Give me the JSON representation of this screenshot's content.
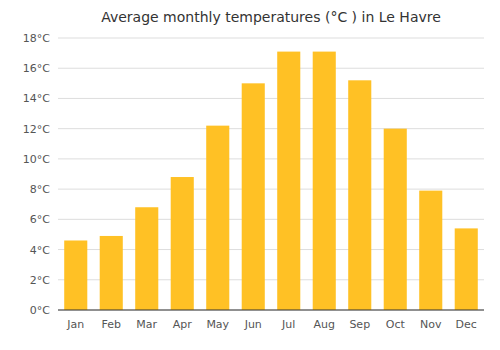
{
  "chart_data": {
    "type": "bar",
    "title": "Average monthly temperatures (°C ) in Le Havre",
    "categories": [
      "Jan",
      "Feb",
      "Mar",
      "Apr",
      "May",
      "Jun",
      "Jul",
      "Aug",
      "Sep",
      "Oct",
      "Nov",
      "Dec"
    ],
    "values": [
      4.6,
      4.9,
      6.8,
      8.8,
      12.2,
      15.0,
      17.1,
      17.1,
      15.2,
      12.0,
      7.9,
      5.4
    ],
    "color": "#FFC125",
    "ylim": [
      0,
      18
    ],
    "yticks": [
      {
        "value": 0,
        "label": "0°C"
      },
      {
        "value": 2,
        "label": "2°C"
      },
      {
        "value": 4,
        "label": "4°C"
      },
      {
        "value": 6,
        "label": "6°C"
      },
      {
        "value": 8,
        "label": "8°C"
      },
      {
        "value": 10,
        "label": "10°C"
      },
      {
        "value": 12,
        "label": "12°C"
      },
      {
        "value": 14,
        "label": "14°C"
      },
      {
        "value": 16,
        "label": "16°C"
      },
      {
        "value": 18,
        "label": "18°C"
      }
    ],
    "grid": true
  }
}
